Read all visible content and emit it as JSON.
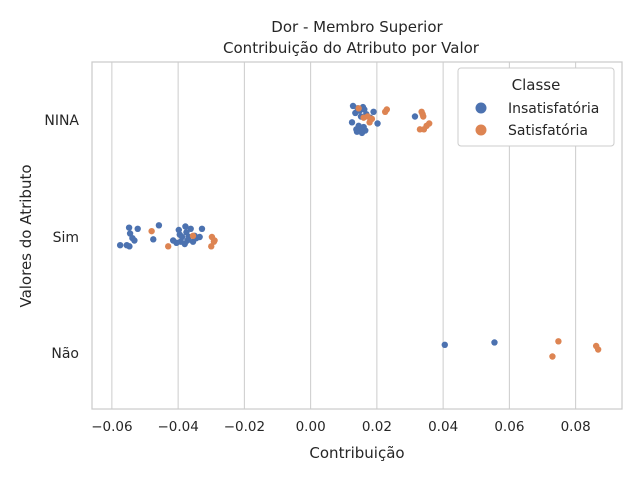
{
  "chart_data": {
    "type": "scatter",
    "title": "Dor - Membro Superior",
    "subtitle": "Contribuição do Atributo por Valor",
    "xlabel": "Contribuição",
    "ylabel": "Valores do Atributo",
    "xlim": [
      -0.066,
      0.094
    ],
    "xticks": [
      -0.06,
      -0.04,
      -0.02,
      0.0,
      0.02,
      0.04,
      0.06,
      0.08
    ],
    "xtick_labels": [
      "−0.06",
      "−0.04",
      "−0.02",
      "0.00",
      "0.02",
      "0.04",
      "0.06",
      "0.08"
    ],
    "categories": [
      "NINA",
      "Sim",
      "Não"
    ],
    "grid": true,
    "legend": {
      "title": "Classe",
      "placement": "top-right"
    },
    "series": [
      {
        "name": "Insatisfatória",
        "color": "#4c72b0",
        "points": [
          {
            "x": 0.0125,
            "y": "NINA",
            "j": -0.02
          },
          {
            "x": 0.0128,
            "y": "NINA",
            "j": 0.12
          },
          {
            "x": 0.0135,
            "y": "NINA",
            "j": 0.06
          },
          {
            "x": 0.0138,
            "y": "NINA",
            "j": -0.08
          },
          {
            "x": 0.014,
            "y": "NINA",
            "j": -0.1
          },
          {
            "x": 0.0142,
            "y": "NINA",
            "j": 0.1
          },
          {
            "x": 0.0145,
            "y": "NINA",
            "j": -0.05
          },
          {
            "x": 0.0148,
            "y": "NINA",
            "j": 0.08
          },
          {
            "x": 0.015,
            "y": "NINA",
            "j": -0.07
          },
          {
            "x": 0.0152,
            "y": "NINA",
            "j": 0.03
          },
          {
            "x": 0.0155,
            "y": "NINA",
            "j": -0.11
          },
          {
            "x": 0.0158,
            "y": "NINA",
            "j": 0.11
          },
          {
            "x": 0.016,
            "y": "NINA",
            "j": -0.06
          },
          {
            "x": 0.0162,
            "y": "NINA",
            "j": 0.09
          },
          {
            "x": 0.0165,
            "y": "NINA",
            "j": -0.09
          },
          {
            "x": 0.0168,
            "y": "NINA",
            "j": 0.05
          },
          {
            "x": 0.018,
            "y": "NINA",
            "j": 0.02
          },
          {
            "x": 0.019,
            "y": "NINA",
            "j": 0.07
          },
          {
            "x": 0.0202,
            "y": "NINA",
            "j": -0.03
          },
          {
            "x": 0.0315,
            "y": "NINA",
            "j": 0.03
          },
          {
            "x": -0.0575,
            "y": "Sim",
            "j": -0.07
          },
          {
            "x": -0.0555,
            "y": "Sim",
            "j": -0.07
          },
          {
            "x": -0.0548,
            "y": "Sim",
            "j": 0.08
          },
          {
            "x": -0.0547,
            "y": "Sim",
            "j": -0.08
          },
          {
            "x": -0.0545,
            "y": "Sim",
            "j": 0.03
          },
          {
            "x": -0.0538,
            "y": "Sim",
            "j": -0.01
          },
          {
            "x": -0.0532,
            "y": "Sim",
            "j": -0.03
          },
          {
            "x": -0.0522,
            "y": "Sim",
            "j": 0.07
          },
          {
            "x": -0.0475,
            "y": "Sim",
            "j": -0.02
          },
          {
            "x": -0.0458,
            "y": "Sim",
            "j": 0.1
          },
          {
            "x": -0.0415,
            "y": "Sim",
            "j": -0.03
          },
          {
            "x": -0.0405,
            "y": "Sim",
            "j": -0.05
          },
          {
            "x": -0.0398,
            "y": "Sim",
            "j": 0.06
          },
          {
            "x": -0.0395,
            "y": "Sim",
            "j": 0.02
          },
          {
            "x": -0.0392,
            "y": "Sim",
            "j": -0.04
          },
          {
            "x": -0.0388,
            "y": "Sim",
            "j": 0.0
          },
          {
            "x": -0.038,
            "y": "Sim",
            "j": -0.06
          },
          {
            "x": -0.0378,
            "y": "Sim",
            "j": 0.09
          },
          {
            "x": -0.0375,
            "y": "Sim",
            "j": 0.04
          },
          {
            "x": -0.0372,
            "y": "Sim",
            "j": -0.03
          },
          {
            "x": -0.0368,
            "y": "Sim",
            "j": 0.0
          },
          {
            "x": -0.0362,
            "y": "Sim",
            "j": 0.07
          },
          {
            "x": -0.0355,
            "y": "Sim",
            "j": -0.04
          },
          {
            "x": -0.035,
            "y": "Sim",
            "j": 0.01
          },
          {
            "x": -0.0345,
            "y": "Sim",
            "j": -0.01
          },
          {
            "x": -0.0335,
            "y": "Sim",
            "j": 0.0
          },
          {
            "x": -0.0328,
            "y": "Sim",
            "j": 0.07
          },
          {
            "x": 0.0405,
            "y": "Não",
            "j": 0.07
          },
          {
            "x": 0.0555,
            "y": "Não",
            "j": 0.09
          }
        ]
      },
      {
        "name": "Satisfatória",
        "color": "#dd8452",
        "points": [
          {
            "x": 0.0145,
            "y": "NINA",
            "j": 0.1
          },
          {
            "x": 0.016,
            "y": "NINA",
            "j": 0.02
          },
          {
            "x": 0.0172,
            "y": "NINA",
            "j": 0.03
          },
          {
            "x": 0.0178,
            "y": "NINA",
            "j": -0.02
          },
          {
            "x": 0.0185,
            "y": "NINA",
            "j": 0.01
          },
          {
            "x": 0.0225,
            "y": "NINA",
            "j": 0.07
          },
          {
            "x": 0.023,
            "y": "NINA",
            "j": 0.09
          },
          {
            "x": 0.033,
            "y": "NINA",
            "j": -0.08
          },
          {
            "x": 0.0335,
            "y": "NINA",
            "j": 0.07
          },
          {
            "x": 0.0338,
            "y": "NINA",
            "j": 0.05
          },
          {
            "x": 0.034,
            "y": "NINA",
            "j": 0.03
          },
          {
            "x": 0.0342,
            "y": "NINA",
            "j": -0.08
          },
          {
            "x": 0.035,
            "y": "NINA",
            "j": -0.05
          },
          {
            "x": 0.0358,
            "y": "NINA",
            "j": -0.03
          },
          {
            "x": -0.048,
            "y": "Sim",
            "j": 0.05
          },
          {
            "x": -0.043,
            "y": "Sim",
            "j": -0.08
          },
          {
            "x": -0.0355,
            "y": "Sim",
            "j": 0.01
          },
          {
            "x": -0.03,
            "y": "Sim",
            "j": -0.08
          },
          {
            "x": -0.0298,
            "y": "Sim",
            "j": 0.0
          },
          {
            "x": -0.0292,
            "y": "Sim",
            "j": -0.04
          },
          {
            "x": -0.029,
            "y": "Sim",
            "j": -0.03
          },
          {
            "x": 0.073,
            "y": "Não",
            "j": -0.03
          },
          {
            "x": 0.0748,
            "y": "Não",
            "j": 0.1
          },
          {
            "x": 0.0862,
            "y": "Não",
            "j": 0.06
          },
          {
            "x": 0.0868,
            "y": "Não",
            "j": 0.03
          }
        ]
      }
    ]
  }
}
